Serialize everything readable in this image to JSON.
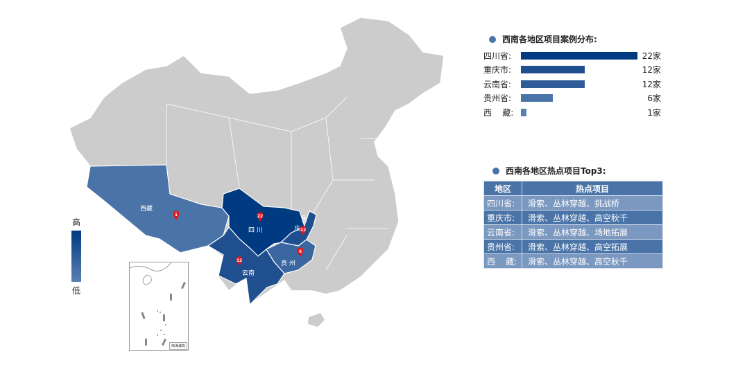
{
  "map": {
    "regions": [
      {
        "name": "西藏",
        "label": "西藏",
        "value": 1,
        "color": "#4a74a8"
      },
      {
        "name": "四川",
        "label": "四 川",
        "value": 22,
        "color": "#003a80"
      },
      {
        "name": "重庆",
        "label": "重\n庆",
        "value": 12,
        "color": "#1f4f8f"
      },
      {
        "name": "云南",
        "label": "云南",
        "value": 12,
        "color": "#1f4f8f"
      },
      {
        "name": "贵州",
        "label": "贵 州",
        "value": 6,
        "color": "#3a679f"
      }
    ],
    "other_color": "#cccccc",
    "marker_color": "#e8141b",
    "legend": {
      "high": "高",
      "low": "低"
    },
    "inset_label": "南海诸岛"
  },
  "distribution": {
    "title": "西南各地区项目案例分布:",
    "max": 22,
    "items": [
      {
        "label": "四川省:",
        "value": 22,
        "text": "22家",
        "color": "#003a80"
      },
      {
        "label": "重庆市:",
        "value": 12,
        "text": "12家",
        "color": "#1f4f8f"
      },
      {
        "label": "云南省:",
        "value": 12,
        "text": "12家",
        "color": "#2f5c98"
      },
      {
        "label": "贵州省:",
        "value": 6,
        "text": "6家",
        "color": "#4a74a8"
      },
      {
        "label": "西    藏:",
        "value": 1,
        "text": "1家",
        "color": "#5b80b4"
      }
    ]
  },
  "hot": {
    "title": "西南各地区热点项目Top3:",
    "headers": [
      "地区",
      "热点项目"
    ],
    "rows": [
      {
        "region": "四川省:",
        "projects": "滑索、丛林穿越、挑战桥"
      },
      {
        "region": "重庆市:",
        "projects": "滑索、丛林穿越、高空秋千"
      },
      {
        "region": "云南省:",
        "projects": "滑索、丛林穿越、场地拓展"
      },
      {
        "region": "贵州省:",
        "projects": "滑索、丛林穿越、高空拓展"
      },
      {
        "region": "西    藏:",
        "projects": "滑索、丛林穿越、高空秋千"
      }
    ]
  }
}
